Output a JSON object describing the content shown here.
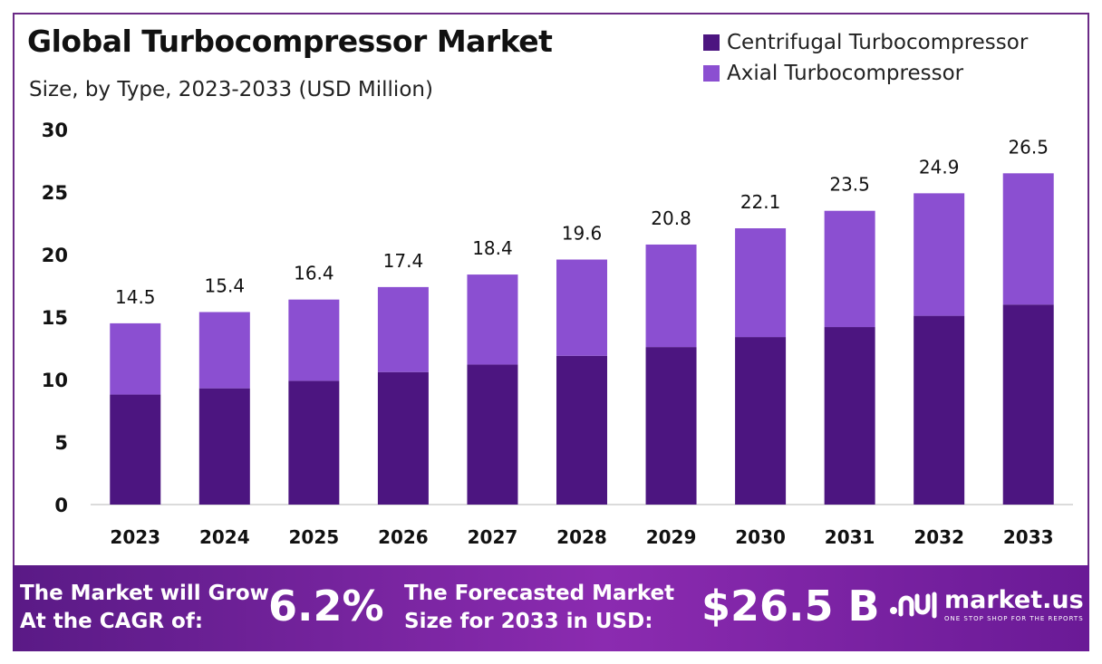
{
  "header": {
    "title": "Global Turbocompressor Market",
    "subtitle": "Size, by Type, 2023-2033 (USD Million)"
  },
  "legend": [
    {
      "label": "Centrifugal Turbocompressor",
      "color": "#4c1580"
    },
    {
      "label": "Axial Turbocompressor",
      "color": "#8b4fd1"
    }
  ],
  "chart_data": {
    "type": "bar",
    "stacked": true,
    "categories": [
      "2023",
      "2024",
      "2025",
      "2026",
      "2027",
      "2028",
      "2029",
      "2030",
      "2031",
      "2032",
      "2033"
    ],
    "series": [
      {
        "name": "Centrifugal Turbocompressor",
        "color": "#4c1580",
        "values": [
          8.8,
          9.3,
          9.9,
          10.6,
          11.2,
          11.9,
          12.6,
          13.4,
          14.2,
          15.1,
          16.0
        ]
      },
      {
        "name": "Axial Turbocompressor",
        "color": "#8b4fd1",
        "values": [
          5.7,
          6.1,
          6.5,
          6.8,
          7.2,
          7.7,
          8.2,
          8.7,
          9.3,
          9.8,
          10.5
        ]
      }
    ],
    "totals": [
      14.5,
      15.4,
      16.4,
      17.4,
      18.4,
      19.6,
      20.8,
      22.1,
      23.5,
      24.9,
      26.5
    ],
    "total_labels": [
      "14.5",
      "15.4",
      "16.4",
      "17.4",
      "18.4",
      "19.6",
      "20.8",
      "22.1",
      "23.5",
      "24.9",
      "26.5"
    ],
    "y_ticks": [
      "0",
      "5",
      "10",
      "15",
      "20",
      "25",
      "30"
    ],
    "ylim": [
      0,
      30
    ],
    "grid": false
  },
  "footer": {
    "cagr_label_1": "The Market will Grow",
    "cagr_label_2": "At the CAGR of:",
    "cagr_value": "6.2%",
    "forecast_label_1": "The Forecasted Market",
    "forecast_label_2": "Size for 2033 in USD:",
    "forecast_value": "$26.5 B",
    "brand_name": "market.us",
    "brand_tagline": "ONE STOP SHOP FOR THE REPORTS"
  }
}
